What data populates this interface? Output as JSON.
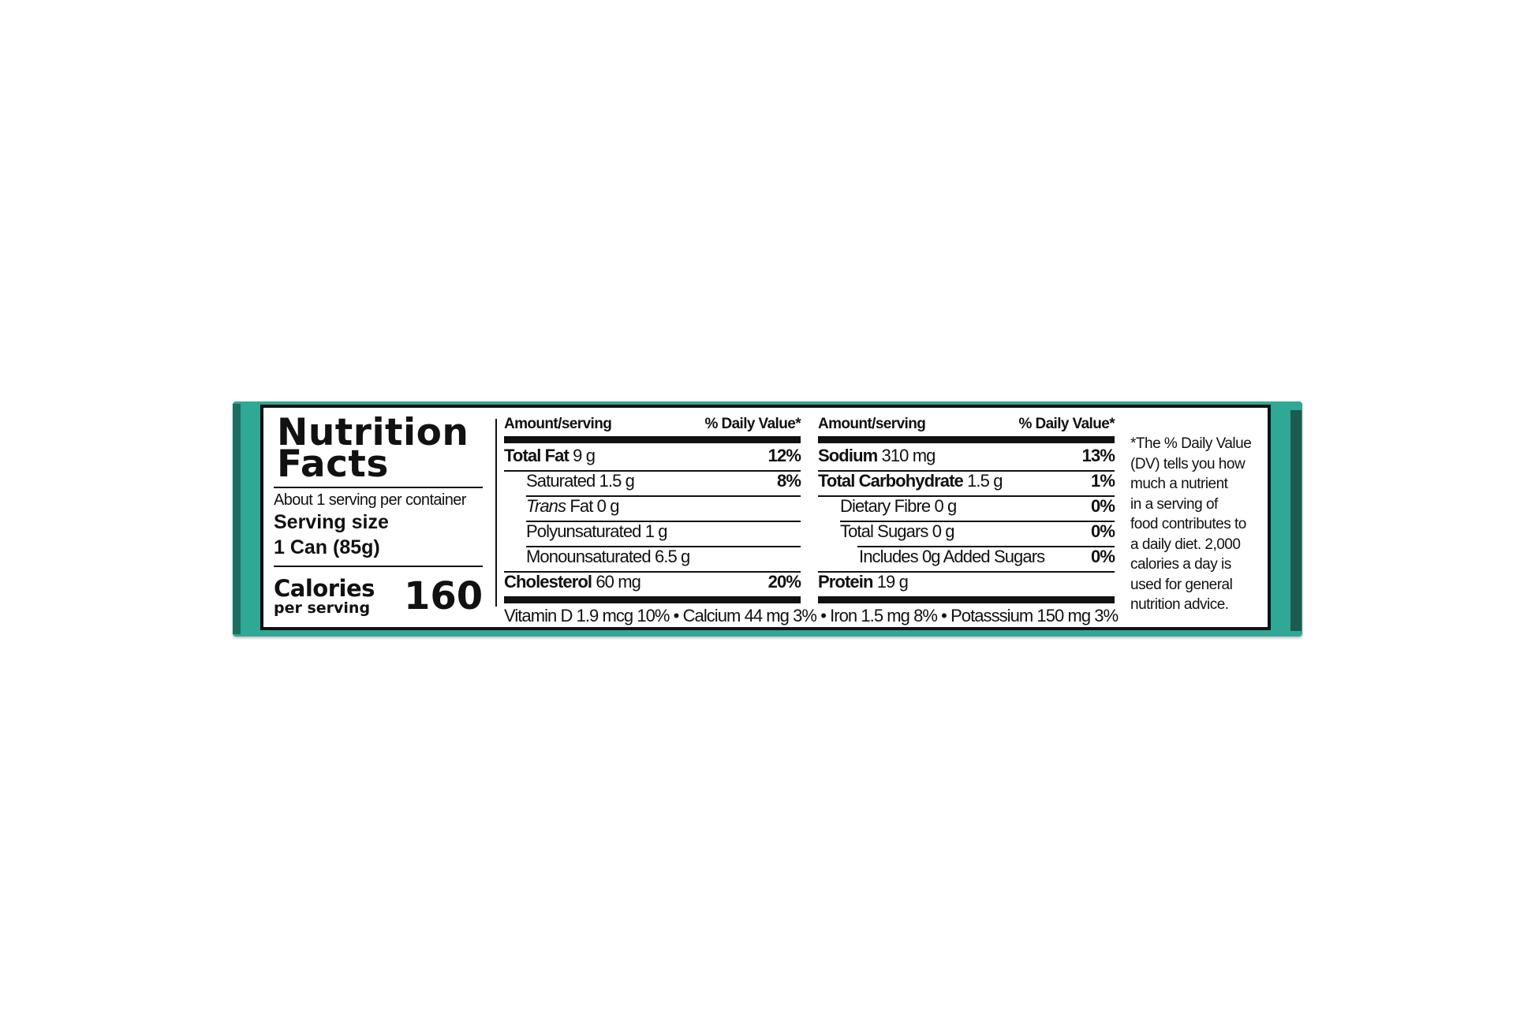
{
  "label": {
    "title_line1": "Nutrition",
    "title_line2": "Facts",
    "servings_per_container": "About 1 serving per container",
    "serving_size_label": "Serving size",
    "serving_size_value": "1 Can (85g)",
    "calories_label": "Calories",
    "calories_sublabel": "per serving",
    "calories_value": "160",
    "column_header_amount": "Amount/serving",
    "column_header_dv": "% Daily Value*",
    "left_rows": [
      {
        "name": "Total Fat",
        "amount": "9 g",
        "dv": "12%"
      },
      {
        "name": "Saturated",
        "amount": "1.5 g",
        "dv": "8%"
      },
      {
        "name": "Trans",
        "name_suffix": "Fat",
        "amount": "0 g",
        "dv": ""
      },
      {
        "name": "Polyunsaturated",
        "amount": "1 g",
        "dv": ""
      },
      {
        "name": "Monounsaturated",
        "amount": "6.5 g",
        "dv": ""
      },
      {
        "name": "Cholesterol",
        "amount": "60 mg",
        "dv": "20%"
      }
    ],
    "right_rows": [
      {
        "name": "Sodium",
        "amount": "310 mg",
        "dv": "13%"
      },
      {
        "name": "Total Carbohydrate",
        "amount": "1.5 g",
        "dv": "1%"
      },
      {
        "name": "Dietary Fibre",
        "amount": "0 g",
        "dv": "0%"
      },
      {
        "name": "Total Sugars",
        "amount": "0 g",
        "dv": "0%"
      },
      {
        "name": "Includes 0g Added Sugars",
        "amount": "",
        "dv": "0%"
      },
      {
        "name": "Protein",
        "amount": "19 g",
        "dv": ""
      }
    ],
    "vitamins": "Vitamin D 1.9 mcg 10% • Calcium 44 mg 3% • Iron 1.5 mg 8% • Potasssium 150 mg 3%",
    "footnote_lines": [
      "*The % Daily Value",
      "(DV) tells you how",
      "much a nutrient",
      "in a serving of",
      "food contributes to",
      "a daily diet. 2,000",
      "calories a day is",
      "used for general",
      "nutrition advice."
    ]
  },
  "colors": {
    "package": "#2fa896",
    "ink": "#111111",
    "background": "#ffffff"
  }
}
